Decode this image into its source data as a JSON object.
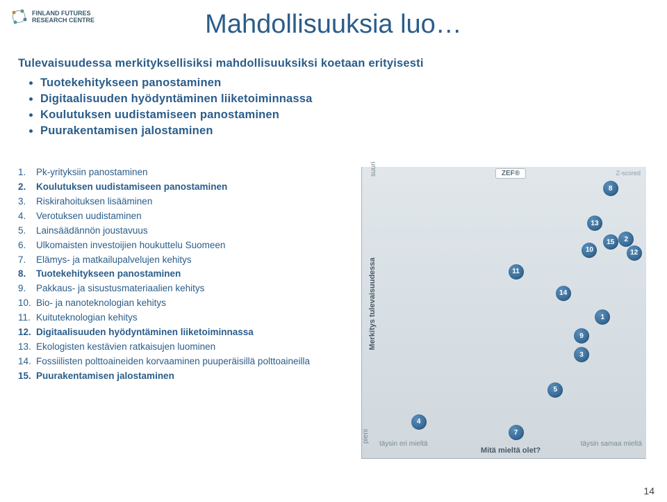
{
  "logo": {
    "line1": "FINLAND FUTURES",
    "line2": "RESEARCH CENTRE"
  },
  "title": "Mahdollisuuksia luo…",
  "subtitle": "Tulevaisuudessa merkityksellisiksi mahdollisuuksiksi koetaan erityisesti",
  "bullets": [
    "Tuotekehitykseen panostaminen",
    "Digitaalisuuden hyödyntäminen liiketoiminnassa",
    "Koulutuksen uudistamiseen panostaminen",
    "Puurakentamisen jalostaminen"
  ],
  "items": [
    {
      "n": "1.",
      "t": "Pk-yrityksiin panostaminen",
      "bold": false
    },
    {
      "n": "2.",
      "t": "Koulutuksen uudistamiseen panostaminen",
      "bold": true
    },
    {
      "n": "3.",
      "t": "Riskirahoituksen lisääminen",
      "bold": false
    },
    {
      "n": "4.",
      "t": "Verotuksen uudistaminen",
      "bold": false
    },
    {
      "n": "5.",
      "t": "Lainsäädännön joustavuus",
      "bold": false
    },
    {
      "n": "6.",
      "t": "Ulkomaisten investoijien houkuttelu Suomeen",
      "bold": false
    },
    {
      "n": "7.",
      "t": "Elämys- ja matkailupalvelujen kehitys",
      "bold": false
    },
    {
      "n": "8.",
      "t": "Tuotekehitykseen panostaminen",
      "bold": true
    },
    {
      "n": "9.",
      "t": "Pakkaus- ja sisustusmateriaalien kehitys",
      "bold": false
    },
    {
      "n": "10.",
      "t": "Bio- ja nanoteknologian kehitys",
      "bold": false
    },
    {
      "n": "11.",
      "t": "Kuituteknologian kehitys",
      "bold": false
    },
    {
      "n": "12.",
      "t": "Digitaalisuuden hyödyntäminen liiketoiminnassa",
      "bold": true
    },
    {
      "n": "13.",
      "t": "Ekologisten kestävien ratkaisujen luominen",
      "bold": false
    },
    {
      "n": "14.",
      "t": "Fossiilisten polttoaineiden korvaaminen puuperäisillä polttoaineilla",
      "bold": false
    },
    {
      "n": "15.",
      "t": "Puurakentamisen jalostaminen",
      "bold": true
    }
  ],
  "chart": {
    "zef": "ZEF®",
    "zscored": "Z-scored",
    "y_label": "Merkitys tulevaisuudessa",
    "y_top": "suuri",
    "y_bottom": "pieni",
    "x_label": "Mitä mieltä olet?",
    "x_left": "täysin eri mieltä",
    "x_right": "täysin samaa mieltä",
    "point_color": "#3a6e9a",
    "bg_top": "#e0e6ea",
    "bg_bottom": "#d0d8de",
    "points": [
      {
        "id": "8",
        "x": 0.88,
        "y": 0.93
      },
      {
        "id": "13",
        "x": 0.82,
        "y": 0.8
      },
      {
        "id": "2",
        "x": 0.94,
        "y": 0.74
      },
      {
        "id": "15",
        "x": 0.88,
        "y": 0.73
      },
      {
        "id": "10",
        "x": 0.8,
        "y": 0.7
      },
      {
        "id": "12",
        "x": 0.97,
        "y": 0.69
      },
      {
        "id": "11",
        "x": 0.52,
        "y": 0.62
      },
      {
        "id": "14",
        "x": 0.7,
        "y": 0.54
      },
      {
        "id": "1",
        "x": 0.85,
        "y": 0.45
      },
      {
        "id": "9",
        "x": 0.77,
        "y": 0.38
      },
      {
        "id": "3",
        "x": 0.77,
        "y": 0.31
      },
      {
        "id": "5",
        "x": 0.67,
        "y": 0.18
      },
      {
        "id": "4",
        "x": 0.15,
        "y": 0.06
      },
      {
        "id": "7",
        "x": 0.52,
        "y": 0.02
      }
    ]
  },
  "page": "14"
}
